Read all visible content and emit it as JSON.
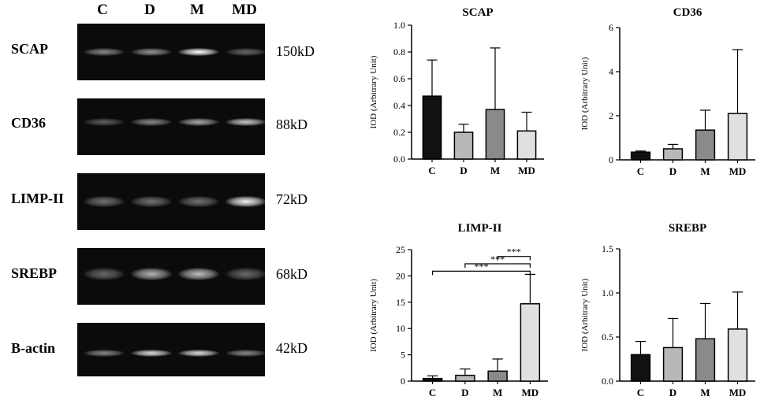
{
  "blot": {
    "lanes": [
      "C",
      "D",
      "M",
      "MD"
    ],
    "rows": [
      {
        "label": "SCAP",
        "size": "150kD",
        "intensity": [
          0.45,
          0.5,
          1.0,
          0.3
        ]
      },
      {
        "label": "CD36",
        "size": "88kD",
        "intensity": [
          0.25,
          0.45,
          0.6,
          0.75
        ]
      },
      {
        "label": "LIMP-II",
        "size": "72kD",
        "intensity": [
          0.35,
          0.35,
          0.35,
          0.95
        ]
      },
      {
        "label": "SREBP",
        "size": "68kD",
        "intensity": [
          0.3,
          0.65,
          0.7,
          0.3
        ]
      },
      {
        "label": "B-actin",
        "size": "42kD",
        "intensity": [
          0.45,
          0.85,
          0.85,
          0.45
        ]
      }
    ]
  },
  "colors": {
    "C": "#111111",
    "D": "#b8b8b8",
    "M": "#8a8a8a",
    "MD": "#e0e0e0"
  },
  "chart_data": [
    {
      "type": "bar",
      "title": "SCAP",
      "ylabel": "IOD (Arbitrary Unit)",
      "categories": [
        "C",
        "D",
        "M",
        "MD"
      ],
      "values": [
        0.47,
        0.2,
        0.37,
        0.21
      ],
      "errors": [
        0.27,
        0.06,
        0.46,
        0.14
      ],
      "ylim": [
        0,
        1.0
      ],
      "yticks": [
        "0.0",
        "0.2",
        "0.4",
        "0.6",
        "0.8",
        "1.0"
      ],
      "significance": []
    },
    {
      "type": "bar",
      "title": "CD36",
      "ylabel": "IOD (Arbitrary Unit)",
      "categories": [
        "C",
        "D",
        "M",
        "MD"
      ],
      "values": [
        0.35,
        0.5,
        1.35,
        2.1
      ],
      "errors": [
        0.05,
        0.2,
        0.9,
        2.9
      ],
      "ylim": [
        0,
        6
      ],
      "yticks": [
        "0",
        "2",
        "4",
        "6"
      ],
      "significance": []
    },
    {
      "type": "bar",
      "title": "LIMP-II",
      "ylabel": "IOD (Arbitrary Unit)",
      "categories": [
        "C",
        "D",
        "M",
        "MD"
      ],
      "values": [
        0.5,
        1.1,
        1.9,
        14.7
      ],
      "errors": [
        0.5,
        1.2,
        2.3,
        5.6
      ],
      "ylim": [
        0,
        25
      ],
      "yticks": [
        "0",
        "5",
        "10",
        "15",
        "20",
        "25"
      ],
      "significance": [
        {
          "from": "M",
          "to": "MD",
          "label": "***",
          "y": 23.7
        },
        {
          "from": "D",
          "to": "MD",
          "label": "***",
          "y": 22.3
        },
        {
          "from": "C",
          "to": "MD",
          "label": "***",
          "y": 20.9
        }
      ]
    },
    {
      "type": "bar",
      "title": "SREBP",
      "ylabel": "IOD (Arbitrary Unit)",
      "categories": [
        "C",
        "D",
        "M",
        "MD"
      ],
      "values": [
        0.3,
        0.38,
        0.48,
        0.59
      ],
      "errors": [
        0.15,
        0.33,
        0.4,
        0.42
      ],
      "ylim": [
        0,
        1.5
      ],
      "yticks": [
        "0.0",
        "0.5",
        "1.0",
        "1.5"
      ],
      "significance": []
    }
  ]
}
